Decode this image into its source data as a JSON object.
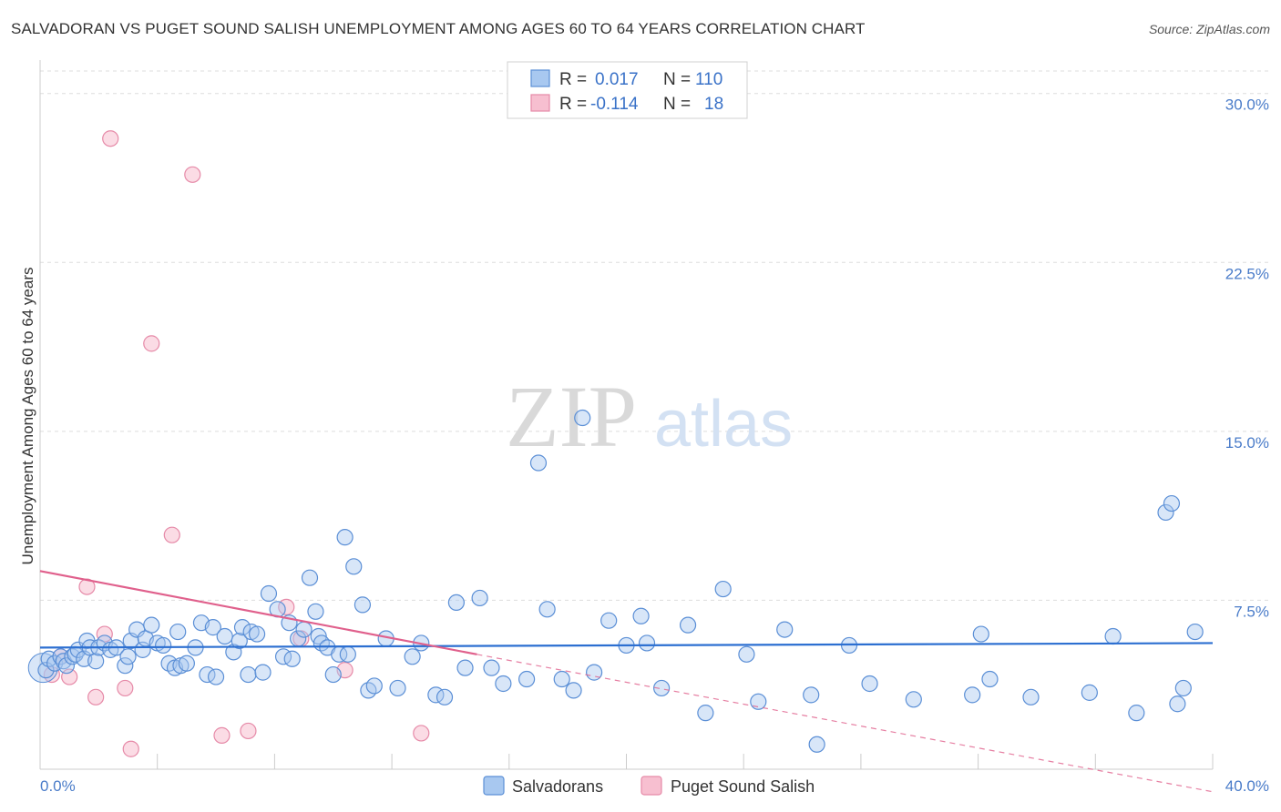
{
  "title": "SALVADORAN VS PUGET SOUND SALISH UNEMPLOYMENT AMONG AGES 60 TO 64 YEARS CORRELATION CHART",
  "source": "Source: ZipAtlas.com",
  "watermark": {
    "zip": "ZIP",
    "atlas": "atlas"
  },
  "colors": {
    "blue_fill": "#a8c8f0",
    "blue_stroke": "#5b8fd6",
    "blue_line": "#2c6fd1",
    "pink_fill": "#f7bfd0",
    "pink_stroke": "#e68aa8",
    "pink_line": "#e0608c",
    "grid": "#dddddd",
    "tick_label": "#4a7cc9"
  },
  "legend": {
    "rows": [
      {
        "r_label": "R =",
        "r_value": "0.017",
        "n_label": "N =",
        "n_value": "110"
      },
      {
        "r_label": "R =",
        "r_value": "-0.114",
        "n_label": "N =",
        "n_value": "18"
      }
    ]
  },
  "bottom_legend": {
    "series1": "Salvadorans",
    "series2": "Puget Sound Salish"
  },
  "chart_data": {
    "type": "scatter",
    "title": "SALVADORAN VS PUGET SOUND SALISH UNEMPLOYMENT AMONG AGES 60 TO 64 YEARS CORRELATION CHART",
    "xlabel": "",
    "ylabel": "Unemployment Among Ages 60 to 64 years",
    "xlim": [
      0,
      40
    ],
    "ylim": [
      0,
      31
    ],
    "x_tick_labels": [
      "0.0%",
      "40.0%"
    ],
    "y_ticks": [
      7.5,
      15.0,
      22.5,
      30.0
    ],
    "y_tick_labels": [
      "7.5%",
      "15.0%",
      "22.5%",
      "30.0%"
    ],
    "grid": true,
    "legend_position": "top-center",
    "series": [
      {
        "name": "Salvadorans",
        "r": 0.017,
        "n": 110,
        "trend": {
          "x0": 0,
          "y0": 5.4,
          "x1": 40,
          "y1": 5.6
        },
        "points": [
          [
            0.2,
            4.4
          ],
          [
            0.3,
            4.9
          ],
          [
            0.5,
            4.7
          ],
          [
            0.7,
            5.0
          ],
          [
            0.8,
            4.8
          ],
          [
            0.9,
            4.6
          ],
          [
            1.1,
            5.0
          ],
          [
            1.2,
            5.1
          ],
          [
            1.3,
            5.3
          ],
          [
            1.5,
            4.9
          ],
          [
            1.6,
            5.7
          ],
          [
            1.7,
            5.4
          ],
          [
            1.9,
            4.8
          ],
          [
            2.0,
            5.4
          ],
          [
            2.2,
            5.6
          ],
          [
            2.4,
            5.3
          ],
          [
            2.6,
            5.4
          ],
          [
            2.9,
            4.6
          ],
          [
            3.0,
            5.0
          ],
          [
            3.1,
            5.7
          ],
          [
            3.3,
            6.2
          ],
          [
            3.5,
            5.3
          ],
          [
            3.6,
            5.8
          ],
          [
            3.8,
            6.4
          ],
          [
            4.0,
            5.6
          ],
          [
            4.2,
            5.5
          ],
          [
            4.4,
            4.7
          ],
          [
            4.6,
            4.5
          ],
          [
            4.7,
            6.1
          ],
          [
            4.8,
            4.6
          ],
          [
            5.0,
            4.7
          ],
          [
            5.3,
            5.4
          ],
          [
            5.5,
            6.5
          ],
          [
            5.7,
            4.2
          ],
          [
            5.9,
            6.3
          ],
          [
            6.0,
            4.1
          ],
          [
            6.3,
            5.9
          ],
          [
            6.6,
            5.2
          ],
          [
            6.8,
            5.7
          ],
          [
            6.9,
            6.3
          ],
          [
            7.1,
            4.2
          ],
          [
            7.2,
            6.1
          ],
          [
            7.4,
            6.0
          ],
          [
            7.6,
            4.3
          ],
          [
            7.8,
            7.8
          ],
          [
            8.1,
            7.1
          ],
          [
            8.3,
            5.0
          ],
          [
            8.5,
            6.5
          ],
          [
            8.6,
            4.9
          ],
          [
            8.8,
            5.8
          ],
          [
            9.0,
            6.2
          ],
          [
            9.2,
            8.5
          ],
          [
            9.4,
            7.0
          ],
          [
            9.5,
            5.9
          ],
          [
            9.6,
            5.6
          ],
          [
            9.8,
            5.4
          ],
          [
            10.0,
            4.2
          ],
          [
            10.2,
            5.1
          ],
          [
            10.4,
            10.3
          ],
          [
            10.5,
            5.1
          ],
          [
            10.7,
            9.0
          ],
          [
            11.0,
            7.3
          ],
          [
            11.2,
            3.5
          ],
          [
            11.4,
            3.7
          ],
          [
            11.8,
            5.8
          ],
          [
            12.2,
            3.6
          ],
          [
            12.7,
            5.0
          ],
          [
            13.0,
            5.6
          ],
          [
            13.5,
            3.3
          ],
          [
            13.8,
            3.2
          ],
          [
            14.2,
            7.4
          ],
          [
            14.5,
            4.5
          ],
          [
            15.0,
            7.6
          ],
          [
            15.4,
            4.5
          ],
          [
            15.8,
            3.8
          ],
          [
            16.6,
            4.0
          ],
          [
            17.0,
            13.6
          ],
          [
            17.3,
            7.1
          ],
          [
            17.8,
            4.0
          ],
          [
            18.2,
            3.5
          ],
          [
            18.5,
            15.6
          ],
          [
            18.9,
            4.3
          ],
          [
            19.4,
            6.6
          ],
          [
            20.0,
            5.5
          ],
          [
            20.5,
            6.8
          ],
          [
            20.7,
            5.6
          ],
          [
            21.2,
            3.6
          ],
          [
            22.1,
            6.4
          ],
          [
            22.7,
            2.5
          ],
          [
            23.3,
            8.0
          ],
          [
            24.1,
            5.1
          ],
          [
            24.5,
            3.0
          ],
          [
            25.4,
            6.2
          ],
          [
            26.3,
            3.3
          ],
          [
            26.5,
            1.1
          ],
          [
            27.6,
            5.5
          ],
          [
            28.3,
            3.8
          ],
          [
            29.8,
            3.1
          ],
          [
            31.8,
            3.3
          ],
          [
            32.1,
            6.0
          ],
          [
            32.4,
            4.0
          ],
          [
            33.8,
            3.2
          ],
          [
            35.8,
            3.4
          ],
          [
            36.6,
            5.9
          ],
          [
            37.4,
            2.5
          ],
          [
            38.4,
            11.4
          ],
          [
            38.6,
            11.8
          ],
          [
            38.8,
            2.9
          ],
          [
            39.0,
            3.6
          ],
          [
            39.4,
            6.1
          ]
        ]
      },
      {
        "name": "Puget Sound Salish",
        "r": -0.114,
        "n": 18,
        "trend": {
          "x0": 0,
          "y0": 8.8,
          "x1": 14.9,
          "y1": 5.1,
          "dashed_to_x": 40,
          "dashed_to_y": -1.0
        },
        "points": [
          [
            0.4,
            4.2
          ],
          [
            0.7,
            5.0
          ],
          [
            1.0,
            4.1
          ],
          [
            1.6,
            8.1
          ],
          [
            1.9,
            3.2
          ],
          [
            2.2,
            6.0
          ],
          [
            2.4,
            28.0
          ],
          [
            2.9,
            3.6
          ],
          [
            3.1,
            0.9
          ],
          [
            3.8,
            18.9
          ],
          [
            4.5,
            10.4
          ],
          [
            5.2,
            26.4
          ],
          [
            6.2,
            1.5
          ],
          [
            7.1,
            1.7
          ],
          [
            8.4,
            7.2
          ],
          [
            8.9,
            5.8
          ],
          [
            10.4,
            4.4
          ],
          [
            13.0,
            1.6
          ]
        ]
      }
    ]
  }
}
